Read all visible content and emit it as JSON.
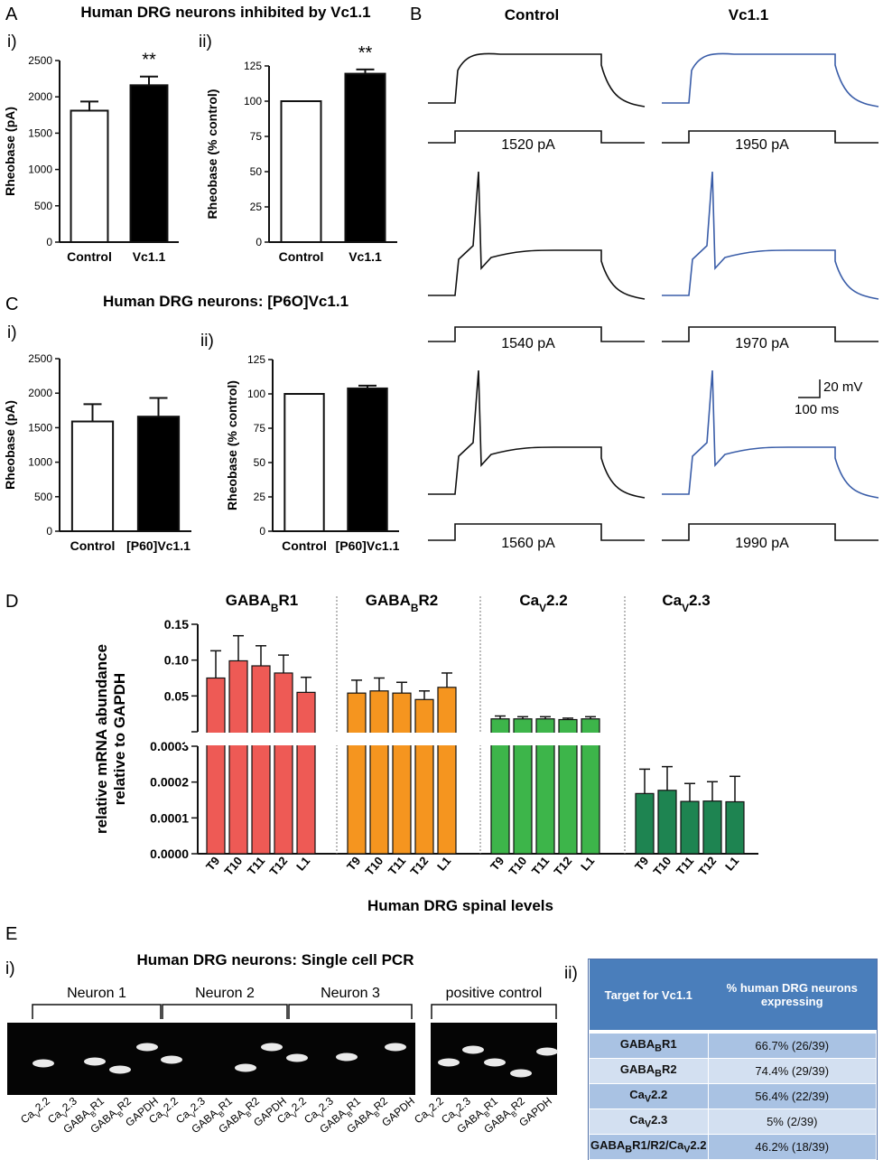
{
  "panel_A": {
    "letter": "A",
    "title": "Human DRG neurons inhibited by Vc1.1",
    "sub_i": "i)",
    "sub_ii": "ii)"
  },
  "panel_B": {
    "letter": "B",
    "col_control": "Control",
    "col_vc": "Vc1.1",
    "currents_control": [
      "1520 pA",
      "1540 pA",
      "1560 pA"
    ],
    "currents_vc": [
      "1950 pA",
      "1970 pA",
      "1990 pA"
    ],
    "scale_mv": "20 mV",
    "scale_ms": "100 ms",
    "trace_color_control": "#111111",
    "trace_color_vc": "#3a5da8"
  },
  "panel_C": {
    "letter": "C",
    "title": "Human DRG neurons: [P6O]Vc1.1",
    "sub_i": "i)",
    "sub_ii": "ii)"
  },
  "panel_D": {
    "letter": "D",
    "group_titles": [
      "GABA",
      "GABA",
      "Ca",
      "Ca"
    ],
    "group_title_parts": [
      {
        "main": "GABA",
        "sub": "B",
        "tail": "R1"
      },
      {
        "main": "GABA",
        "sub": "B",
        "tail": "R2"
      },
      {
        "main": "Ca",
        "sub": "V",
        "tail": "2.2"
      },
      {
        "main": "Ca",
        "sub": "V",
        "tail": "2.3"
      }
    ],
    "ylabel_line1": "relative mRNA abundance",
    "ylabel_line2": "relative to GAPDH",
    "xlabel": "Human DRG spinal levels",
    "levels": [
      "T9",
      "T10",
      "T11",
      "T12",
      "L1"
    ],
    "colors": [
      "#ee5a55",
      "#f5951f",
      "#3db54a",
      "#1e8451"
    ]
  },
  "panel_E": {
    "letter": "E",
    "sub_i": "i)",
    "sub_ii": "ii)",
    "gel_title": "Human DRG neurons: Single cell PCR",
    "neurons": [
      "Neuron 1",
      "Neuron 2",
      "Neuron 3"
    ],
    "positive_control": "positive control",
    "lane_labels": [
      {
        "main": "Ca",
        "sub": "V",
        "tail": "2.2"
      },
      {
        "main": "Ca",
        "sub": "V",
        "tail": "2.3"
      },
      {
        "main": "GABA",
        "sub": "B",
        "tail": "R1"
      },
      {
        "main": "GABA",
        "sub": "B",
        "tail": "R2"
      },
      {
        "main": "GAPDH",
        "sub": "",
        "tail": ""
      }
    ],
    "table": {
      "header_target": "Target for Vc1.1",
      "header_pct": "% human DRG neurons expressing",
      "rows": [
        {
          "target_main": "GABA",
          "target_sub": "B",
          "target_tail": "R1",
          "value": "66.7% (26/39)"
        },
        {
          "target_main": "GABA",
          "target_sub": "B",
          "target_tail": "R2",
          "value": "74.4% (29/39)"
        },
        {
          "target_main": "Ca",
          "target_sub": "V",
          "target_tail": "2.2",
          "value": "56.4% (22/39)"
        },
        {
          "target_main": "Ca",
          "target_sub": "V",
          "target_tail": "2.3",
          "value": "5% (2/39)"
        },
        {
          "target_main": "GABA",
          "target_sub": "B",
          "target_tail": "R1/R2/Ca",
          "target_sub2": "V",
          "target_tail2": "2.2",
          "value": "46.2% (18/39)"
        }
      ]
    }
  },
  "chart_data": [
    {
      "id": "A_i",
      "type": "bar",
      "categories": [
        "Control",
        "Vc1.1"
      ],
      "values": [
        1810,
        2160
      ],
      "errors": [
        125,
        120
      ],
      "ylabel": "Rheobase (pA)",
      "ylim": [
        0,
        2500
      ],
      "yticks": [
        0,
        500,
        1000,
        1500,
        2000,
        2500
      ],
      "significance": [
        "",
        "**"
      ],
      "fills": [
        "#ffffff",
        "#000000"
      ]
    },
    {
      "id": "A_ii",
      "type": "bar",
      "categories": [
        "Control",
        "Vc1.1"
      ],
      "values": [
        100,
        119.5
      ],
      "errors": [
        0,
        3
      ],
      "ylabel": "Rheobase (% control)",
      "ylim": [
        0,
        125
      ],
      "yticks": [
        0,
        25,
        50,
        75,
        100,
        125
      ],
      "significance": [
        "",
        "**"
      ],
      "fills": [
        "#ffffff",
        "#000000"
      ]
    },
    {
      "id": "C_i",
      "type": "bar",
      "categories": [
        "Control",
        "[P60]Vc1.1"
      ],
      "values": [
        1590,
        1660
      ],
      "errors": [
        250,
        270
      ],
      "ylabel": "Rheobase (pA)",
      "ylim": [
        0,
        2500
      ],
      "yticks": [
        0,
        500,
        1000,
        1500,
        2000,
        2500
      ],
      "significance": [
        "",
        ""
      ],
      "fills": [
        "#ffffff",
        "#000000"
      ]
    },
    {
      "id": "C_ii",
      "type": "bar",
      "categories": [
        "Control",
        "[P60]Vc1.1"
      ],
      "values": [
        100,
        104
      ],
      "errors": [
        0,
        2
      ],
      "ylabel": "Rheobase (% control)",
      "ylim": [
        0,
        125
      ],
      "yticks": [
        0,
        25,
        50,
        75,
        100,
        125
      ],
      "significance": [
        "",
        ""
      ],
      "fills": [
        "#ffffff",
        "#000000"
      ]
    },
    {
      "id": "D",
      "type": "bar",
      "categories": [
        "T9",
        "T10",
        "T11",
        "T12",
        "L1"
      ],
      "ylabel": "relative mRNA abundance relative to GAPDH",
      "xlabel": "Human DRG spinal levels",
      "upper_ylim": [
        0,
        0.15
      ],
      "upper_yticks": [
        "0.05",
        "0.10",
        "0.15"
      ],
      "lower_ylim": [
        0,
        0.0003
      ],
      "lower_yticks": [
        "0.0000",
        "0.0001",
        "0.0002",
        "0.0003"
      ],
      "series": [
        {
          "name": "GABABR1",
          "values": [
            0.075,
            0.099,
            0.092,
            0.082,
            0.055
          ],
          "errors": [
            0.038,
            0.035,
            0.028,
            0.025,
            0.021
          ]
        },
        {
          "name": "GABABR2",
          "values": [
            0.054,
            0.057,
            0.054,
            0.045,
            0.062
          ],
          "errors": [
            0.018,
            0.018,
            0.015,
            0.012,
            0.02
          ]
        },
        {
          "name": "CaV2.2",
          "values": [
            0.018,
            0.018,
            0.018,
            0.017,
            0.018
          ],
          "errors": [
            0.004,
            0.003,
            0.003,
            0.002,
            0.003
          ]
        },
        {
          "name": "CaV2.3",
          "values": [
            0.000168,
            0.000177,
            0.000146,
            0.000147,
            0.000145
          ],
          "errors": [
            6.8e-05,
            6.6e-05,
            5e-05,
            5.4e-05,
            7.1e-05
          ]
        }
      ]
    }
  ]
}
